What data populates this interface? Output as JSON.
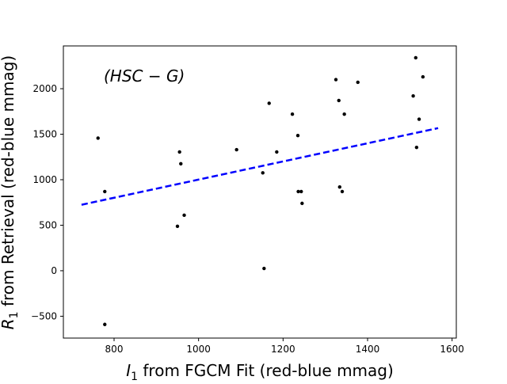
{
  "chart_data": {
    "type": "scatter",
    "annotation": "(HSC − G)",
    "xlabel_main": "I",
    "xlabel_sub": "1",
    "xlabel_rest": " from FGCM Fit (red-blue mmag)",
    "ylabel_main": "R",
    "ylabel_sub": "1",
    "ylabel_rest": " from Retrieval (red-blue mmag)",
    "xlim": [
      680,
      1610
    ],
    "ylim": [
      -740,
      2470
    ],
    "x_ticks": [
      800,
      1000,
      1200,
      1400,
      1600
    ],
    "y_ticks": [
      -500,
      0,
      500,
      1000,
      1500,
      2000
    ],
    "grid": false,
    "points": [
      {
        "x": 762,
        "y": 1457
      },
      {
        "x": 778,
        "y": 870
      },
      {
        "x": 778,
        "y": -590
      },
      {
        "x": 950,
        "y": 488
      },
      {
        "x": 955,
        "y": 1305
      },
      {
        "x": 958,
        "y": 1175
      },
      {
        "x": 966,
        "y": 610
      },
      {
        "x": 1090,
        "y": 1330
      },
      {
        "x": 1152,
        "y": 1075
      },
      {
        "x": 1155,
        "y": 25
      },
      {
        "x": 1167,
        "y": 1840
      },
      {
        "x": 1185,
        "y": 1305
      },
      {
        "x": 1222,
        "y": 1720
      },
      {
        "x": 1235,
        "y": 1485
      },
      {
        "x": 1236,
        "y": 870
      },
      {
        "x": 1243,
        "y": 870
      },
      {
        "x": 1245,
        "y": 740
      },
      {
        "x": 1325,
        "y": 2100
      },
      {
        "x": 1332,
        "y": 1870
      },
      {
        "x": 1334,
        "y": 920
      },
      {
        "x": 1340,
        "y": 870
      },
      {
        "x": 1345,
        "y": 1720
      },
      {
        "x": 1377,
        "y": 2070
      },
      {
        "x": 1508,
        "y": 1920
      },
      {
        "x": 1514,
        "y": 2340
      },
      {
        "x": 1516,
        "y": 1355
      },
      {
        "x": 1522,
        "y": 1665
      },
      {
        "x": 1531,
        "y": 2130
      }
    ],
    "fit_line": {
      "x": [
        723,
        1567
      ],
      "y": [
        725,
        1567
      ],
      "color": "#0000ff",
      "style": "dashed"
    },
    "marker_color": "#000000"
  }
}
